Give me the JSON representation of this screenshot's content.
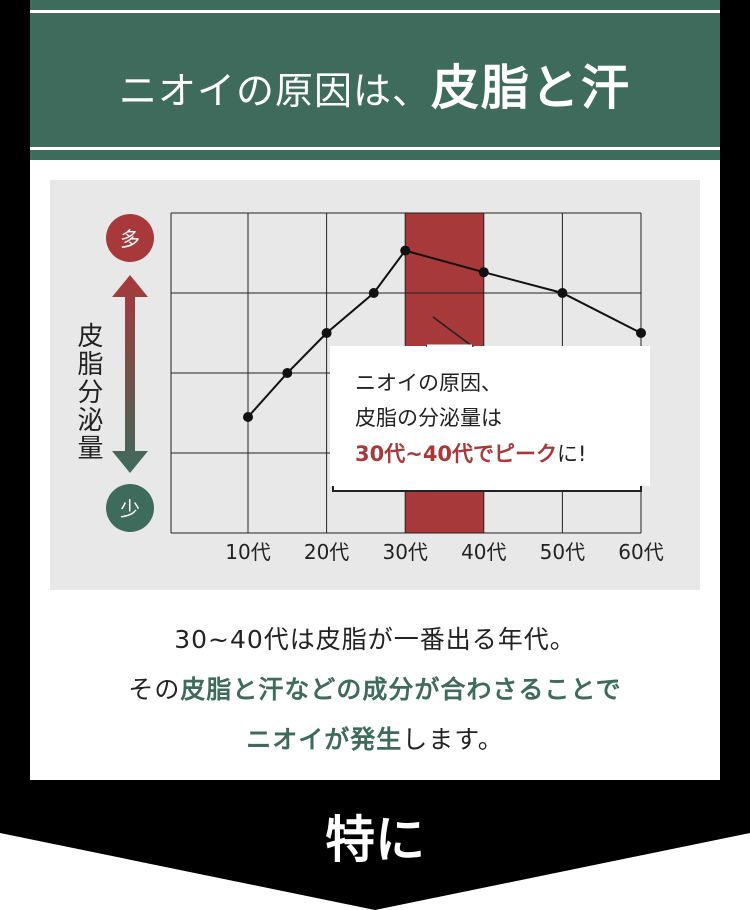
{
  "header": {
    "title_plain": "ニオイの原因は、",
    "title_bold": "皮脂と汗"
  },
  "colors": {
    "green": "#3e6b5c",
    "red": "#a8393a",
    "chart_bg": "#e8e8e8"
  },
  "chart_data": {
    "type": "line",
    "xlabel": "",
    "ylabel": "皮脂分泌量",
    "y_high_label": "多",
    "y_low_label": "少",
    "categories": [
      "10代",
      "20代",
      "30代",
      "40代",
      "50代",
      "60代"
    ],
    "xlim": [
      0,
      60
    ],
    "ylim": [
      0,
      4
    ],
    "grid": true,
    "highlight_range": [
      30,
      40
    ],
    "series": [
      {
        "x": [
          10,
          15,
          20,
          26,
          30,
          40,
          50,
          60
        ],
        "y": [
          1.45,
          2.0,
          2.5,
          3.0,
          3.53,
          3.26,
          3.0,
          2.5
        ]
      }
    ],
    "callout": {
      "line1": "ニオイの原因、",
      "line2": "皮脂の分泌量は",
      "line3_red": "30代~40代でピーク",
      "line3_end": "に!"
    }
  },
  "description": {
    "line1": "30~40代は皮脂が一番出る年代。",
    "line2_a": "その",
    "line2_b": "皮脂と汗などの成分が合わさることで",
    "line3_a": "ニオイが発生",
    "line3_b": "します。"
  },
  "footer": {
    "label": "特に"
  }
}
